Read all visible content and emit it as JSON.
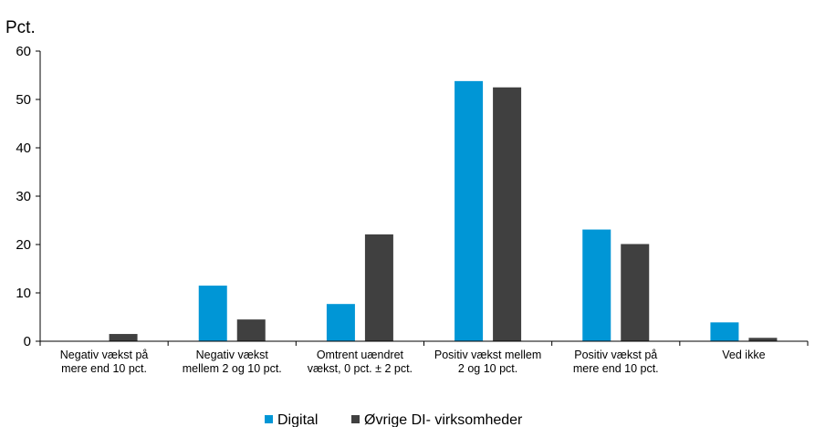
{
  "chart_data": {
    "type": "bar",
    "unit_label": "Pct.",
    "categories": [
      [
        "Negativ vækst på",
        "mere end 10 pct."
      ],
      [
        "Negativ vækst",
        "mellem 2 og 10 pct."
      ],
      [
        "Omtrent uændret",
        "vækst, 0 pct. ± 2 pct."
      ],
      [
        "Positiv vækst mellem",
        "2 og 10 pct."
      ],
      [
        "Positiv vækst på",
        "mere end 10 pct."
      ],
      [
        "Ved ikke"
      ]
    ],
    "series": [
      {
        "name": "Digital",
        "color": "#0096d6",
        "values": [
          0,
          11.5,
          7.7,
          53.8,
          23.1,
          3.9
        ]
      },
      {
        "name": "Øvrige DI- virksomheder",
        "color": "#404040",
        "values": [
          1.5,
          4.5,
          22.1,
          52.5,
          20.1,
          0.7
        ]
      }
    ],
    "yticks": [
      "0",
      "10",
      "20",
      "30",
      "40",
      "50",
      "60"
    ],
    "ylim": [
      0,
      60
    ],
    "grid": false,
    "legend_position": "bottom-center"
  }
}
